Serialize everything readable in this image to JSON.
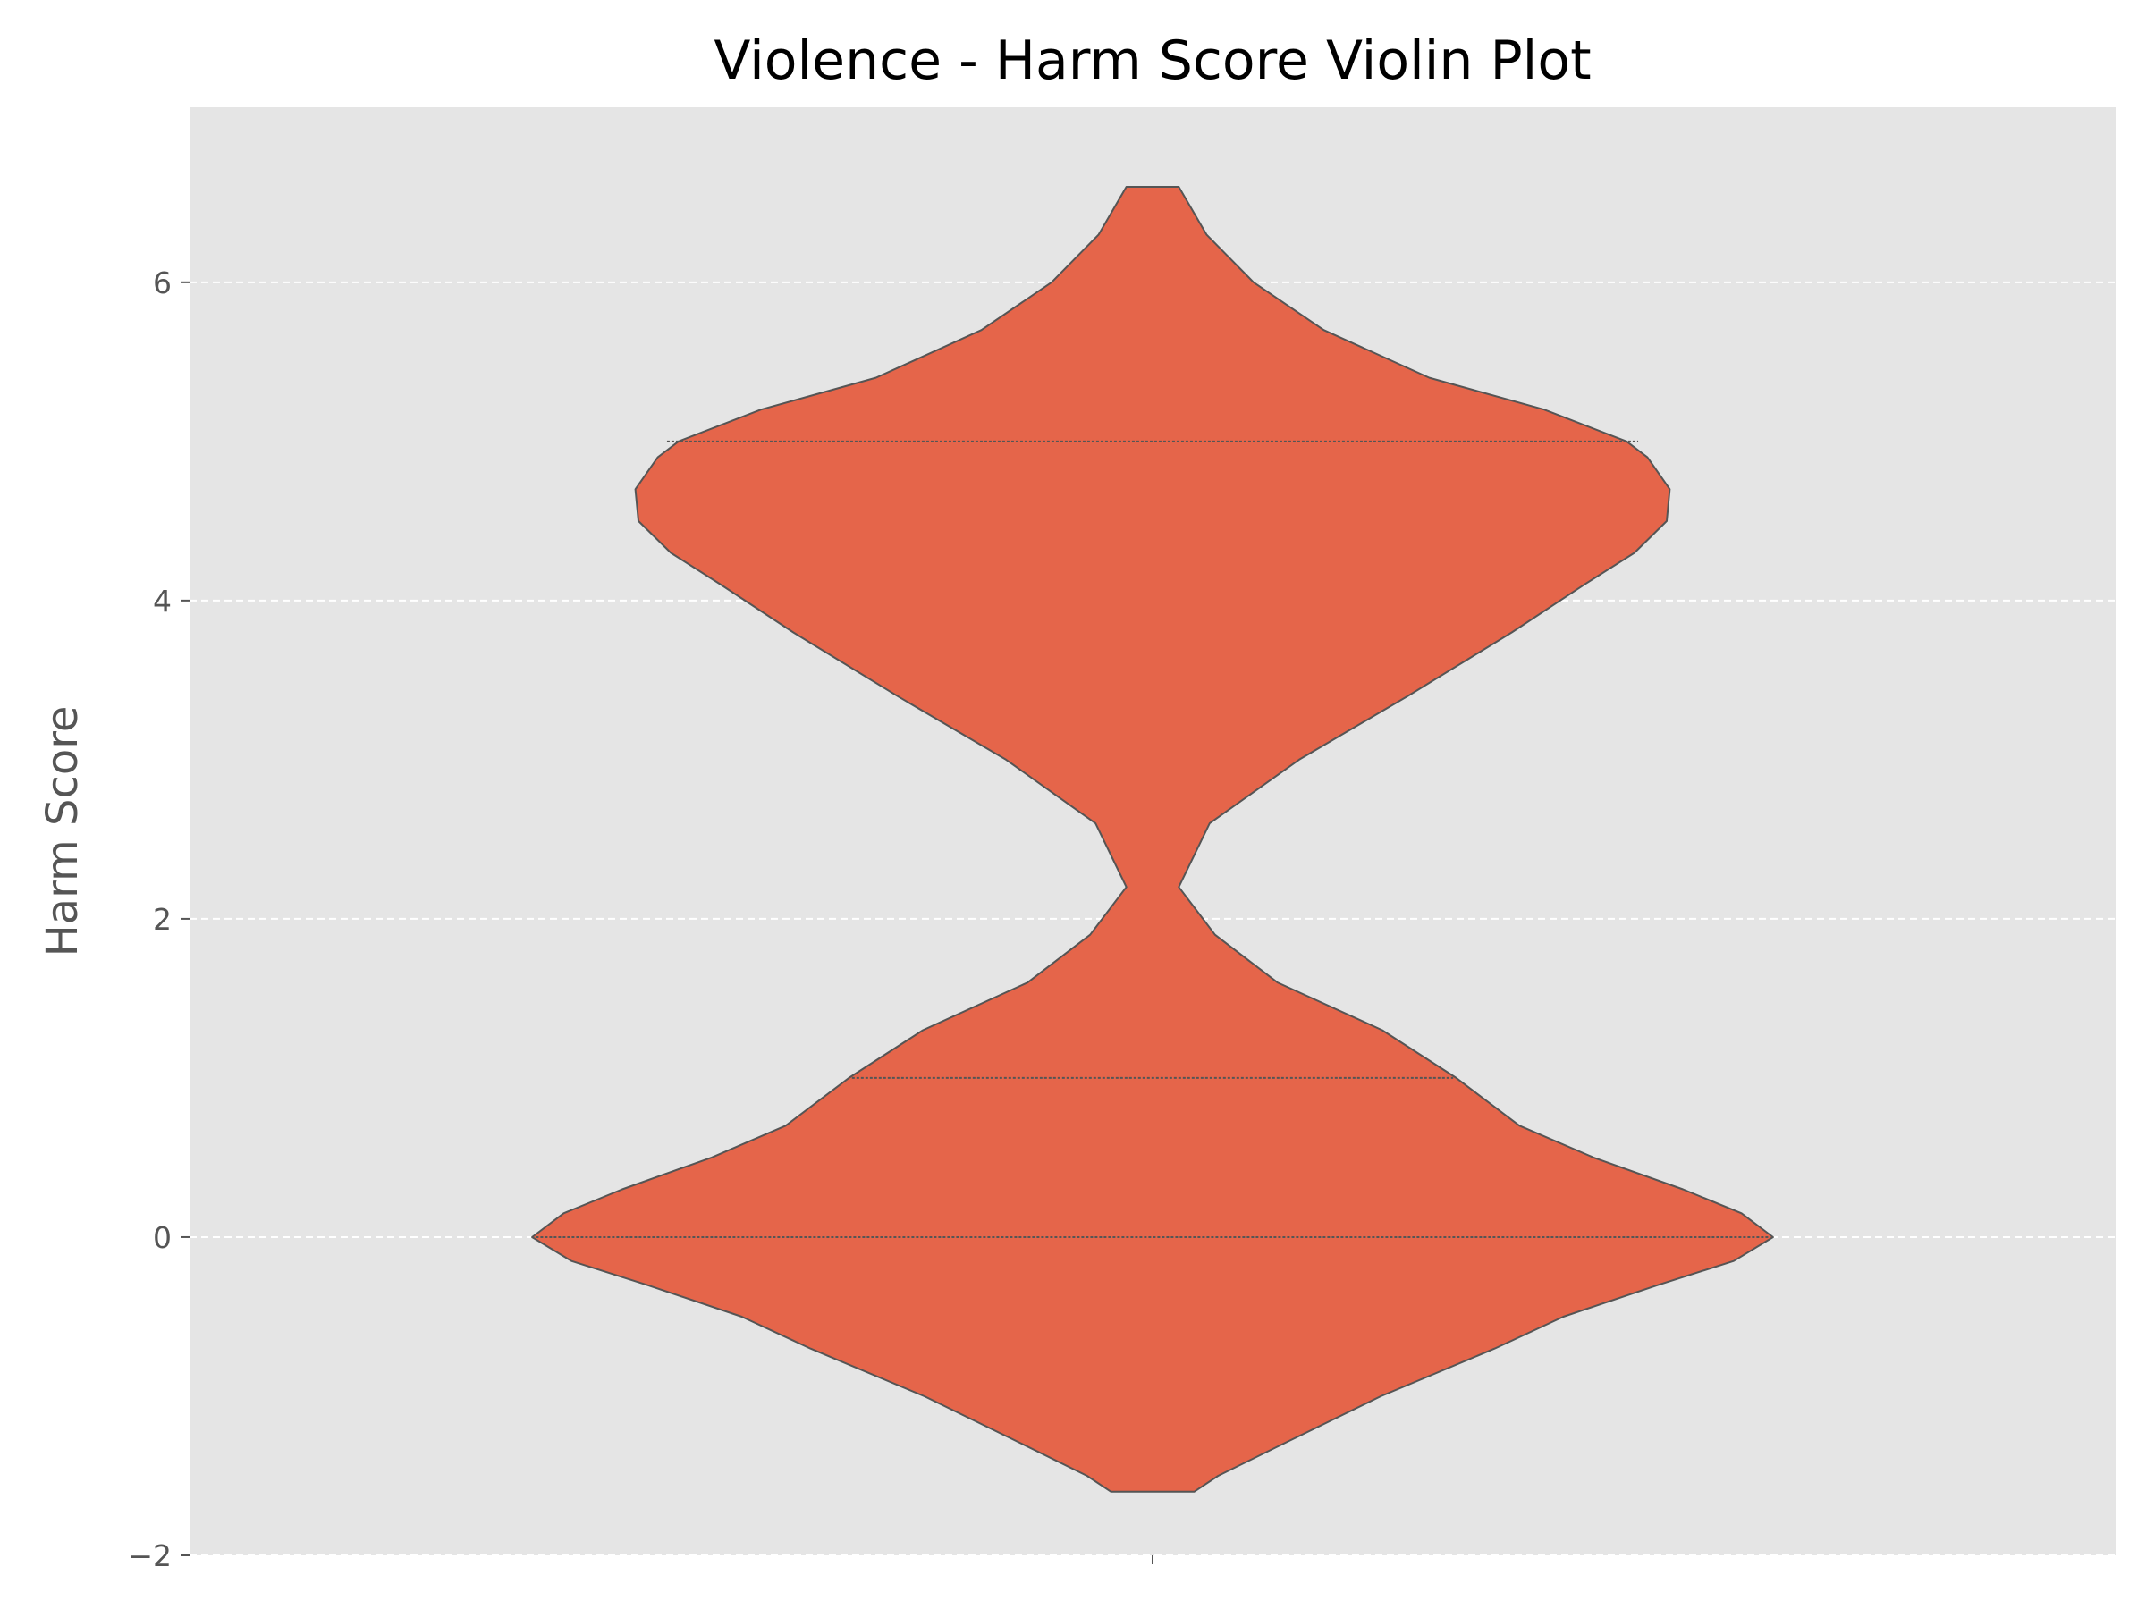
{
  "chart_data": {
    "type": "violin",
    "title": "Violence - Harm Score Violin Plot",
    "xlabel": "",
    "ylabel": "Harm Score",
    "ylim": [
      -2,
      7.1
    ],
    "yticks": [
      {
        "value": -2,
        "label": "−2"
      },
      {
        "value": 0,
        "label": "0"
      },
      {
        "value": 2,
        "label": "2"
      },
      {
        "value": 4,
        "label": "4"
      },
      {
        "value": 6,
        "label": "6"
      }
    ],
    "xticks": [
      ""
    ],
    "grid": "y dashed",
    "colors": {
      "fill": "#e5654a",
      "edge": "#555555",
      "plot_bg": "#e5e5e5",
      "grid": "#ffffff"
    },
    "series": [
      {
        "name": "Violence",
        "min": -1.6,
        "max": 6.6,
        "quartiles": [
          {
            "name": "q1",
            "value": 0.0,
            "halfwidth": 0.8
          },
          {
            "name": "median",
            "value": 1.0,
            "halfwidth": 0.39
          },
          {
            "name": "q3",
            "value": 5.0,
            "halfwidth": 0.63
          }
        ],
        "density": [
          [
            -1.6,
            0.054
          ],
          [
            -1.5,
            0.085
          ],
          [
            -1.3,
            0.169
          ],
          [
            -1.0,
            0.296
          ],
          [
            -0.7,
            0.444
          ],
          [
            -0.5,
            0.533
          ],
          [
            -0.3,
            0.656
          ],
          [
            -0.15,
            0.754
          ],
          [
            0.0,
            0.805
          ],
          [
            0.15,
            0.764
          ],
          [
            0.3,
            0.688
          ],
          [
            0.5,
            0.572
          ],
          [
            0.7,
            0.476
          ],
          [
            1.0,
            0.394
          ],
          [
            1.3,
            0.298
          ],
          [
            1.6,
            0.162
          ],
          [
            1.9,
            0.081
          ],
          [
            2.2,
            0.034
          ],
          [
            2.6,
            0.074
          ],
          [
            3.0,
            0.19
          ],
          [
            3.4,
            0.331
          ],
          [
            3.8,
            0.466
          ],
          [
            4.1,
            0.56
          ],
          [
            4.3,
            0.625
          ],
          [
            4.5,
            0.667
          ],
          [
            4.7,
            0.671
          ],
          [
            4.9,
            0.642
          ],
          [
            5.0,
            0.615
          ],
          [
            5.2,
            0.508
          ],
          [
            5.4,
            0.359
          ],
          [
            5.7,
            0.222
          ],
          [
            6.0,
            0.131
          ],
          [
            6.3,
            0.07
          ],
          [
            6.6,
            0.034
          ]
        ]
      }
    ]
  }
}
